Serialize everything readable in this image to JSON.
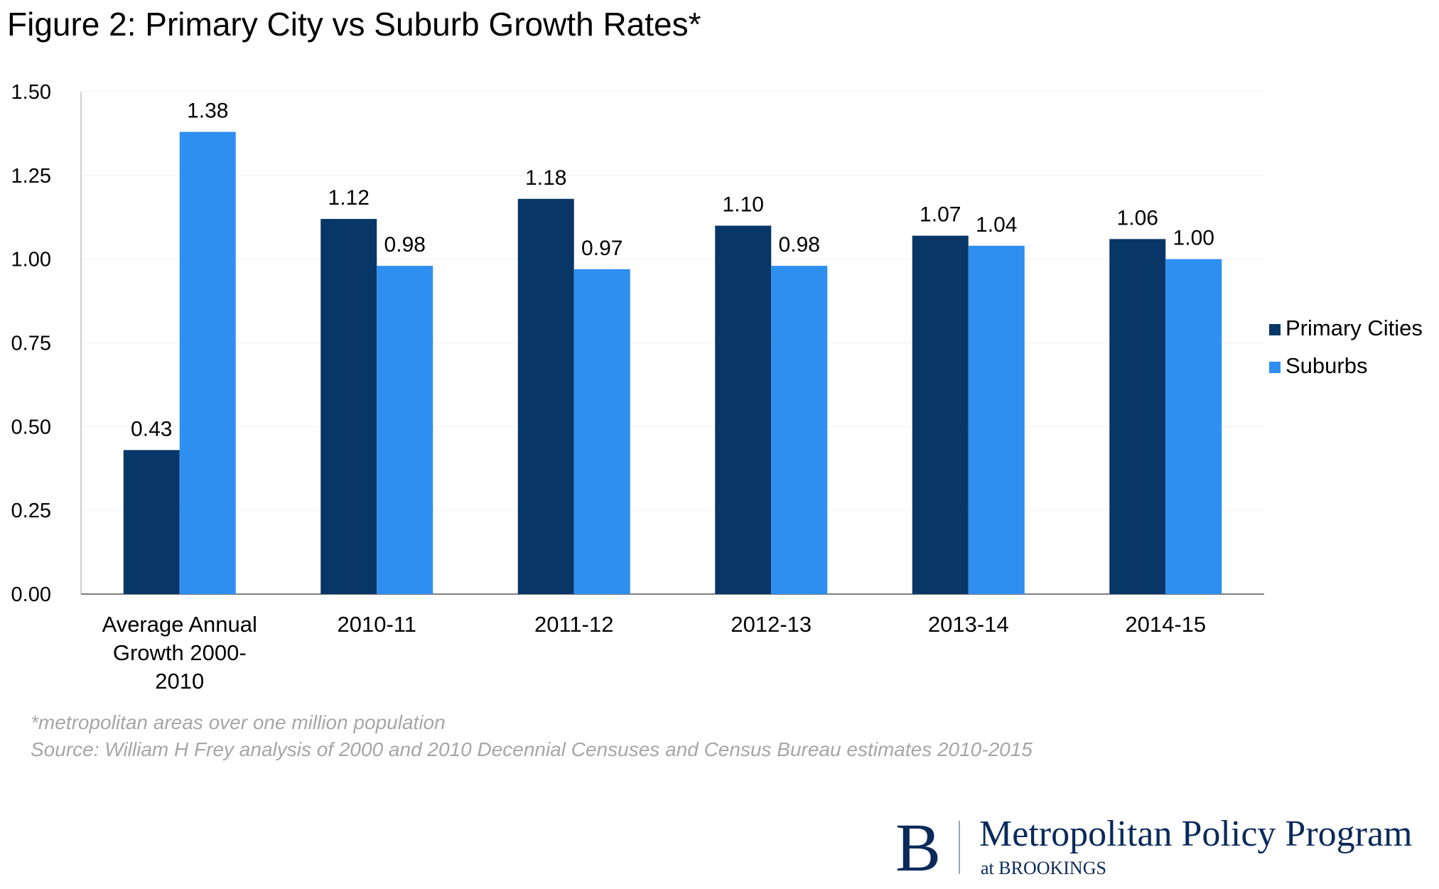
{
  "chart_data": {
    "type": "bar",
    "title": "Figure 2: Primary City vs Suburb Growth Rates*",
    "xlabel": "",
    "ylabel": "",
    "categories": [
      [
        "Average Annual",
        "Growth 2000-",
        "2010"
      ],
      [
        "2010-11"
      ],
      [
        "2011-12"
      ],
      [
        "2012-13"
      ],
      [
        "2013-14"
      ],
      [
        "2014-15"
      ]
    ],
    "series": [
      {
        "name": "Primary Cities",
        "color": "#083666",
        "values": [
          0.43,
          1.12,
          1.18,
          1.1,
          1.07,
          1.06
        ],
        "labels": [
          "0.43",
          "1.12",
          "1.18",
          "1.10",
          "1.07",
          "1.06"
        ]
      },
      {
        "name": "Suburbs",
        "color": "#2e8ff0",
        "values": [
          1.38,
          0.98,
          0.97,
          0.98,
          1.04,
          1.0
        ],
        "labels": [
          "1.38",
          "0.98",
          "0.97",
          "0.98",
          "1.04",
          "1.00"
        ]
      }
    ],
    "ylim": [
      0,
      1.5
    ],
    "yticks": [
      "0.00",
      "0.25",
      "0.50",
      "0.75",
      "1.00",
      "1.25",
      "1.50"
    ],
    "grid": true,
    "legend": "right"
  },
  "footnotes": [
    "*metropolitan areas over one million population",
    "Source: William H Frey analysis of 2000 and 2010 Decennial Censuses and Census Bureau estimates  2010-2015"
  ],
  "logo": {
    "letter": "B",
    "name": "Metropolitan Policy Program",
    "sub": "at BROOKINGS"
  }
}
